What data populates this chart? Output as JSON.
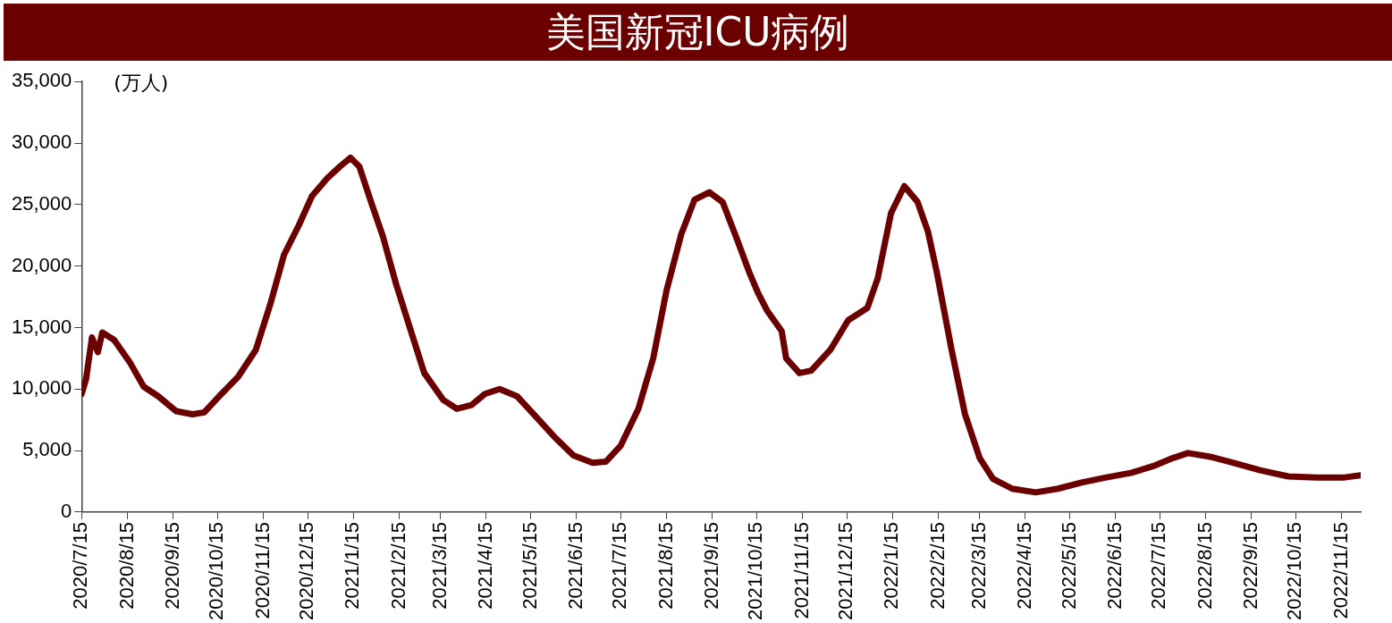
{
  "chart_data": {
    "type": "line",
    "title": "美国新冠ICU病例",
    "ylabel": "(万人)",
    "x": [
      "2020-07-15",
      "2020-07-18",
      "2020-07-22",
      "2020-07-26",
      "2020-07-29",
      "2020-08-06",
      "2020-08-17",
      "2020-08-26",
      "2020-09-05",
      "2020-09-17",
      "2020-09-28",
      "2020-10-06",
      "2020-10-16",
      "2020-10-29",
      "2020-11-10",
      "2020-11-20",
      "2020-11-29",
      "2020-12-09",
      "2020-12-18",
      "2020-12-28",
      "2021-01-06",
      "2021-01-13",
      "2021-01-19",
      "2021-01-27",
      "2021-02-04",
      "2021-02-13",
      "2021-02-23",
      "2021-03-04",
      "2021-03-17",
      "2021-03-26",
      "2021-04-05",
      "2021-04-14",
      "2021-04-24",
      "2021-05-06",
      "2021-05-19",
      "2021-06-01",
      "2021-06-13",
      "2021-06-26",
      "2021-07-05",
      "2021-07-15",
      "2021-07-27",
      "2021-08-06",
      "2021-08-15",
      "2021-08-25",
      "2021-09-03",
      "2021-09-13",
      "2021-09-22",
      "2021-10-01",
      "2021-10-10",
      "2021-10-16",
      "2021-10-22",
      "2021-11-01",
      "2021-11-04",
      "2021-11-13",
      "2021-11-21",
      "2021-12-04",
      "2021-12-16",
      "2021-12-29",
      "2022-01-05",
      "2022-01-14",
      "2022-01-23",
      "2022-02-01",
      "2022-02-08",
      "2022-02-14",
      "2022-02-24",
      "2022-03-05",
      "2022-03-15",
      "2022-03-24",
      "2022-04-06",
      "2022-04-22",
      "2022-05-07",
      "2022-05-23",
      "2022-06-08",
      "2022-06-26",
      "2022-07-12",
      "2022-07-24",
      "2022-08-03",
      "2022-08-18",
      "2022-09-03",
      "2022-09-21",
      "2022-10-10",
      "2022-10-29",
      "2022-11-16",
      "2022-11-28"
    ],
    "series": [
      {
        "color": "#6b0000",
        "values": [
          9600,
          10800,
          14200,
          13000,
          14600,
          14000,
          12100,
          10200,
          9400,
          8200,
          7950,
          8100,
          9400,
          11000,
          13200,
          17000,
          20900,
          23300,
          25700,
          27100,
          28100,
          28800,
          28100,
          25200,
          22400,
          18500,
          14700,
          11300,
          9100,
          8400,
          8700,
          9600,
          10000,
          9400,
          7700,
          6000,
          4600,
          4000,
          4100,
          5400,
          8400,
          12500,
          18000,
          22600,
          25400,
          26000,
          25200,
          22400,
          19500,
          17800,
          16400,
          14700,
          12500,
          11300,
          11500,
          13200,
          15600,
          16600,
          19000,
          24300,
          26500,
          25200,
          22800,
          19500,
          13200,
          8000,
          4400,
          2700,
          1900,
          1600,
          1900,
          2400,
          2800,
          3200,
          3800,
          4400,
          4800,
          4500,
          4000,
          3400,
          2900,
          2800,
          2800,
          3000
        ]
      }
    ],
    "xlim": [
      "2020-07-15",
      "2022-11-28"
    ],
    "xticks": [
      {
        "value": "2020-07-15",
        "label": "2020/7/15"
      },
      {
        "value": "2020-08-15",
        "label": "2020/8/15"
      },
      {
        "value": "2020-09-15",
        "label": "2020/9/15"
      },
      {
        "value": "2020-10-15",
        "label": "2020/10/15"
      },
      {
        "value": "2020-11-15",
        "label": "2020/11/15"
      },
      {
        "value": "2020-12-15",
        "label": "2020/12/15"
      },
      {
        "value": "2021-01-15",
        "label": "2021/1/15"
      },
      {
        "value": "2021-02-15",
        "label": "2021/2/15"
      },
      {
        "value": "2021-03-15",
        "label": "2021/3/15"
      },
      {
        "value": "2021-04-15",
        "label": "2021/4/15"
      },
      {
        "value": "2021-05-15",
        "label": "2021/5/15"
      },
      {
        "value": "2021-06-15",
        "label": "2021/6/15"
      },
      {
        "value": "2021-07-15",
        "label": "2021/7/15"
      },
      {
        "value": "2021-08-15",
        "label": "2021/8/15"
      },
      {
        "value": "2021-09-15",
        "label": "2021/9/15"
      },
      {
        "value": "2021-10-15",
        "label": "2021/10/15"
      },
      {
        "value": "2021-11-15",
        "label": "2021/11/15"
      },
      {
        "value": "2021-12-15",
        "label": "2021/12/15"
      },
      {
        "value": "2022-01-15",
        "label": "2022/1/15"
      },
      {
        "value": "2022-02-15",
        "label": "2022/2/15"
      },
      {
        "value": "2022-03-15",
        "label": "2022/3/15"
      },
      {
        "value": "2022-04-15",
        "label": "2022/4/15"
      },
      {
        "value": "2022-05-15",
        "label": "2022/5/15"
      },
      {
        "value": "2022-06-15",
        "label": "2022/6/15"
      },
      {
        "value": "2022-07-15",
        "label": "2022/7/15"
      },
      {
        "value": "2022-08-15",
        "label": "2022/8/15"
      },
      {
        "value": "2022-09-15",
        "label": "2022/9/15"
      },
      {
        "value": "2022-10-15",
        "label": "2022/10/15"
      },
      {
        "value": "2022-11-15",
        "label": "2022/11/15"
      }
    ],
    "ylim": [
      0,
      35000
    ],
    "yticks": [
      {
        "value": 0,
        "label": "0"
      },
      {
        "value": 5000,
        "label": "5,000"
      },
      {
        "value": 10000,
        "label": "10,000"
      },
      {
        "value": 15000,
        "label": "15,000"
      },
      {
        "value": 20000,
        "label": "20,000"
      },
      {
        "value": 25000,
        "label": "25,000"
      },
      {
        "value": 30000,
        "label": "30,000"
      },
      {
        "value": 35000,
        "label": "35,000"
      }
    ],
    "grid": false,
    "legend": false,
    "marker": "none",
    "line_style": "solid"
  }
}
